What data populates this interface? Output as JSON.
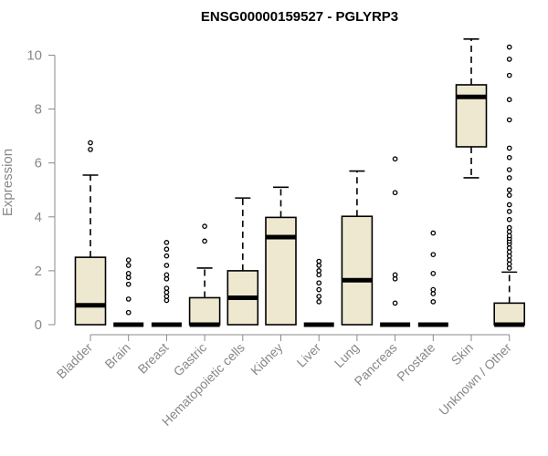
{
  "chart_data": {
    "type": "boxplot",
    "title": "ENSG00000159527 - PGLYRP3",
    "ylabel": "Expression",
    "xlabel": "",
    "ylim": [
      -0.3,
      10.8
    ],
    "yticks": [
      0,
      2,
      4,
      6,
      8,
      10
    ],
    "box_color": "#efe8d0",
    "categories": [
      "Bladder",
      "Brain",
      "Breast",
      "Gastric",
      "Hematopoietic cells",
      "Kidney",
      "Liver",
      "Lung",
      "Pancreas",
      "Prostate",
      "Skin",
      "Unknown / Other"
    ],
    "boxes": [
      {
        "category": "Bladder",
        "whisker_low": 0,
        "q1": 0,
        "median": 0.72,
        "q3": 2.5,
        "whisker_high": 5.55,
        "outliers": [
          6.5,
          6.75
        ]
      },
      {
        "category": "Brain",
        "whisker_low": 0,
        "q1": 0,
        "median": 0,
        "q3": 0,
        "whisker_high": 0,
        "outliers": [
          0.45,
          0.95,
          1.5,
          1.75,
          1.9,
          2.2,
          2.4
        ]
      },
      {
        "category": "Breast",
        "whisker_low": 0,
        "q1": 0,
        "median": 0,
        "q3": 0,
        "whisker_high": 0,
        "outliers": [
          0.9,
          1.05,
          1.2,
          1.35,
          1.7,
          1.85,
          2.2,
          2.55,
          2.8,
          3.05
        ]
      },
      {
        "category": "Gastric",
        "whisker_low": 0,
        "q1": 0,
        "median": 0,
        "q3": 1.0,
        "whisker_high": 2.1,
        "outliers": [
          3.1,
          3.65
        ]
      },
      {
        "category": "Hematopoietic cells",
        "whisker_low": 0,
        "q1": 0,
        "median": 1.0,
        "q3": 2.0,
        "whisker_high": 4.7,
        "outliers": []
      },
      {
        "category": "Kidney",
        "whisker_low": 0,
        "q1": 0,
        "median": 3.25,
        "q3": 3.98,
        "whisker_high": 5.1,
        "outliers": []
      },
      {
        "category": "Liver",
        "whisker_low": 0,
        "q1": 0,
        "median": 0,
        "q3": 0,
        "whisker_high": 0,
        "outliers": [
          0.85,
          1.05,
          1.3,
          1.55,
          1.85,
          2.0,
          2.2,
          2.35
        ]
      },
      {
        "category": "Lung",
        "whisker_low": 0,
        "q1": 0,
        "median": 1.65,
        "q3": 4.02,
        "whisker_high": 5.7,
        "outliers": []
      },
      {
        "category": "Pancreas",
        "whisker_low": 0,
        "q1": 0,
        "median": 0,
        "q3": 0,
        "whisker_high": 0,
        "outliers": [
          0.8,
          1.7,
          1.85,
          4.9,
          6.15
        ]
      },
      {
        "category": "Prostate",
        "whisker_low": 0,
        "q1": 0,
        "median": 0,
        "q3": 0,
        "whisker_high": 0,
        "outliers": [
          0.85,
          1.15,
          1.3,
          1.9,
          2.6,
          3.4
        ]
      },
      {
        "category": "Skin",
        "whisker_low": 5.45,
        "q1": 6.6,
        "median": 8.45,
        "q3": 8.9,
        "whisker_high": 10.6,
        "outliers": []
      },
      {
        "category": "Unknown / Other",
        "whisker_low": 0,
        "q1": 0,
        "median": 0,
        "q3": 0.8,
        "whisker_high": 1.95,
        "outliers": [
          2.1,
          2.25,
          2.4,
          2.55,
          2.7,
          2.85,
          3.0,
          3.1,
          3.2,
          3.3,
          3.45,
          3.6,
          3.9,
          4.2,
          4.45,
          4.8,
          5.0,
          5.45,
          5.75,
          6.2,
          6.55,
          7.6,
          8.35,
          9.25,
          9.85,
          10.3
        ]
      }
    ]
  }
}
